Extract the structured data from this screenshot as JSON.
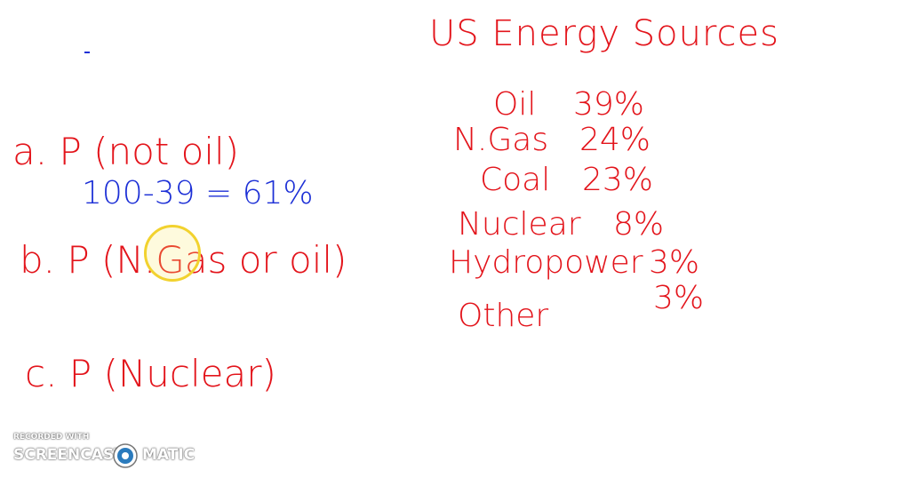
{
  "header": {
    "title": "US Energy Sources"
  },
  "sources": [
    {
      "name": "Oil",
      "value": "39%"
    },
    {
      "name": "N.Gas",
      "value": "24%"
    },
    {
      "name": "Coal",
      "value": "23%"
    },
    {
      "name": "Nuclear",
      "value": "8%"
    },
    {
      "name": "Hydropower",
      "value": "3%"
    },
    {
      "name": "Other",
      "value": "3%"
    }
  ],
  "questions": [
    {
      "label": "a. P (not oil)",
      "work": "100-39 = 61%"
    },
    {
      "label": "b. P (N.Gas or oil)"
    },
    {
      "label": "c. P (Nuclear)"
    }
  ],
  "watermark": {
    "top": "RECORDED WITH",
    "left": "SCREENCAST",
    "right": "MATIC"
  }
}
